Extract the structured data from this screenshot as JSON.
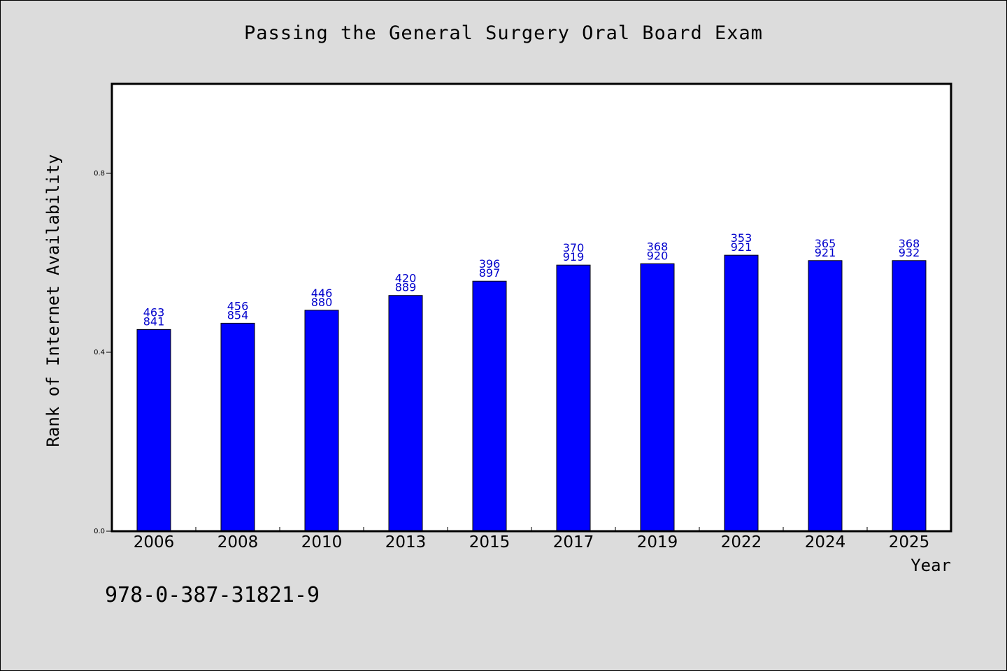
{
  "chart_data": {
    "type": "bar",
    "title": "Passing the General Surgery Oral Board Exam",
    "xlabel": "Year",
    "ylabel": "Rank of Internet Availability",
    "ylim": [
      0.0,
      1.0
    ],
    "yticks": [
      0.0,
      0.4,
      0.8
    ],
    "ytick_labels": [
      "0.0",
      "0.4",
      "0.8"
    ],
    "categories": [
      "2006",
      "2008",
      "2010",
      "2013",
      "2015",
      "2017",
      "2019",
      "2022",
      "2024",
      "2025"
    ],
    "values": [
      0.451,
      0.465,
      0.494,
      0.527,
      0.559,
      0.595,
      0.598,
      0.617,
      0.605,
      0.605
    ],
    "data_labels_top": [
      "463",
      "456",
      "446",
      "420",
      "396",
      "370",
      "368",
      "353",
      "365",
      "368"
    ],
    "data_labels_bottom": [
      "841",
      "854",
      "880",
      "889",
      "897",
      "919",
      "920",
      "921",
      "921",
      "932"
    ],
    "bar_color": "#0000ff",
    "label_color": "#0000cc",
    "grid": false,
    "legend": "none"
  },
  "footnote": "978-0-387-31821-9",
  "colors": {
    "background": "#dcdcdc",
    "plot_background": "#ffffff"
  }
}
